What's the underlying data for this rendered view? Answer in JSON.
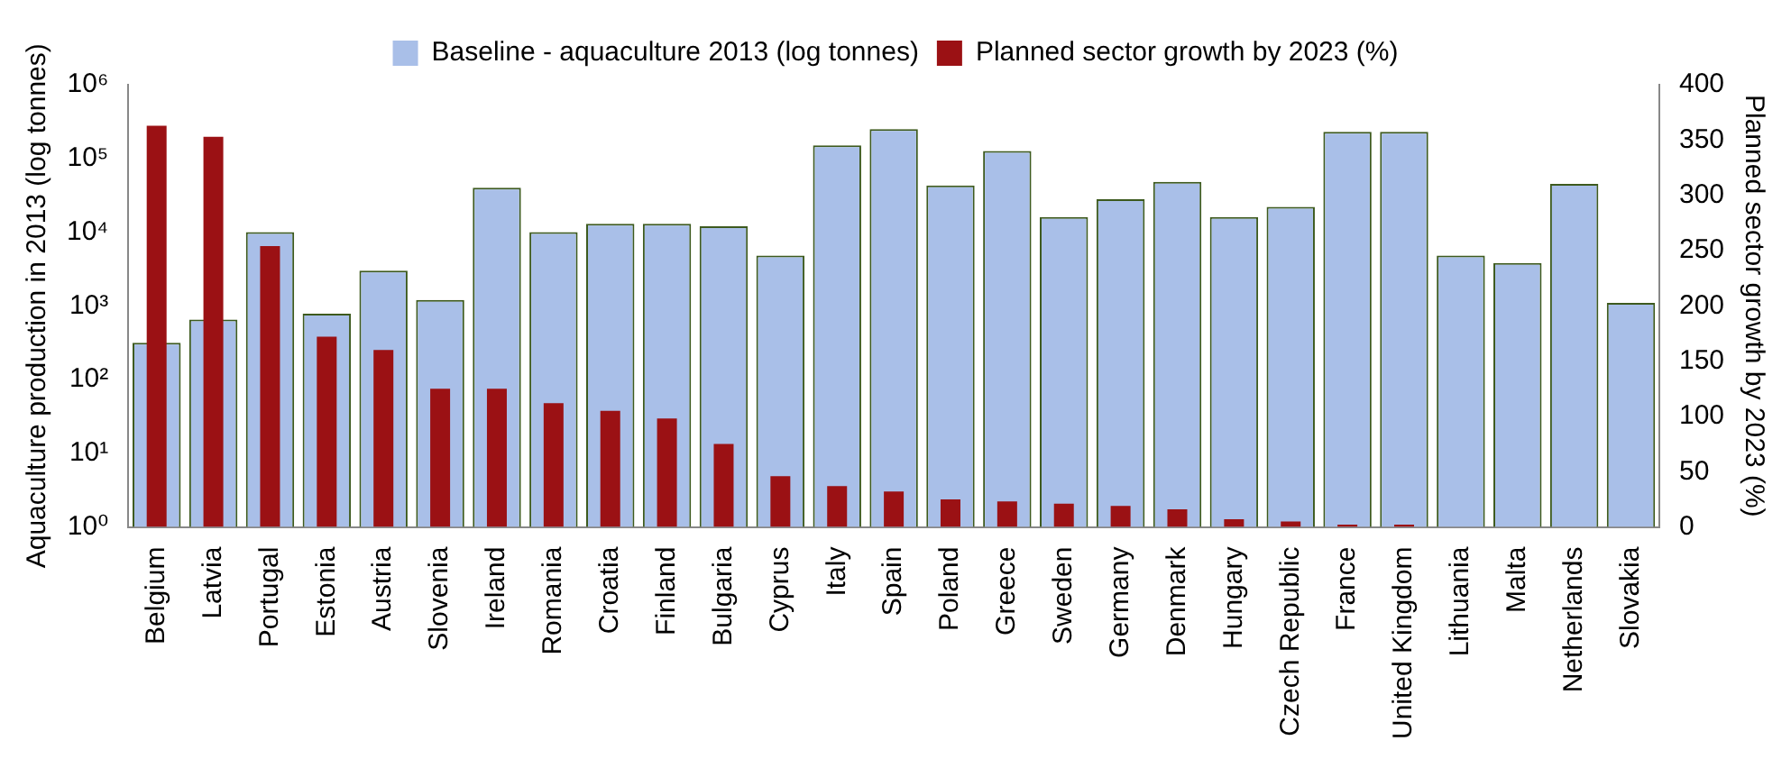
{
  "chart_data": {
    "type": "bar",
    "ylabel": "Aquaculture production in 2013 (log tonnes)",
    "y2label": "Planned sector growth by 2023 (%)",
    "categories": [
      "Belgium",
      "Latvia",
      "Portugal",
      "Estonia",
      "Austria",
      "Slovenia",
      "Ireland",
      "Romania",
      "Croatia",
      "Finland",
      "Bulgaria",
      "Cyprus",
      "Italy",
      "Spain",
      "Poland",
      "Greece",
      "Sweden",
      "Germany",
      "Denmark",
      "Hungary",
      "Czech Republic",
      "France",
      "United Kingdom",
      "Lithuania",
      "Malta",
      "Netherlands",
      "Slovakia"
    ],
    "series": [
      {
        "name": "Baseline - aquaculture 2013 (log tonnes)",
        "color": "#a9bfe8",
        "values": [
          316,
          650,
          10000,
          780,
          3000,
          1200,
          40000,
          10000,
          13000,
          13000,
          12000,
          4800,
          150000,
          250000,
          43000,
          126000,
          16000,
          28000,
          48000,
          16000,
          22000,
          230000,
          230000,
          4800,
          3800,
          45000,
          1100
        ]
      },
      {
        "name": "Planned sector growth by 2023 (%)",
        "color": "#9b1114",
        "axis": "y2",
        "values": [
          363,
          353,
          254,
          172,
          160,
          125,
          125,
          112,
          105,
          98,
          75,
          46,
          37,
          32,
          25,
          23,
          21,
          19,
          16,
          7,
          5,
          2,
          2,
          0,
          0,
          0,
          0
        ]
      }
    ],
    "log": "y",
    "ylim": [
      1,
      1000000
    ],
    "yticks": [
      {
        "value": 1,
        "label": "10⁰"
      },
      {
        "value": 10,
        "label": "10¹"
      },
      {
        "value": 100,
        "label": "10²"
      },
      {
        "value": 1000,
        "label": "10³"
      },
      {
        "value": 10000,
        "label": "10⁴"
      },
      {
        "value": 100000,
        "label": "10⁵"
      },
      {
        "value": 1000000,
        "label": "10⁶"
      }
    ],
    "y2lim": [
      0,
      400
    ],
    "y2ticks": [
      0,
      50,
      100,
      150,
      200,
      250,
      300,
      350,
      400
    ],
    "grid": false,
    "legend": "top"
  }
}
